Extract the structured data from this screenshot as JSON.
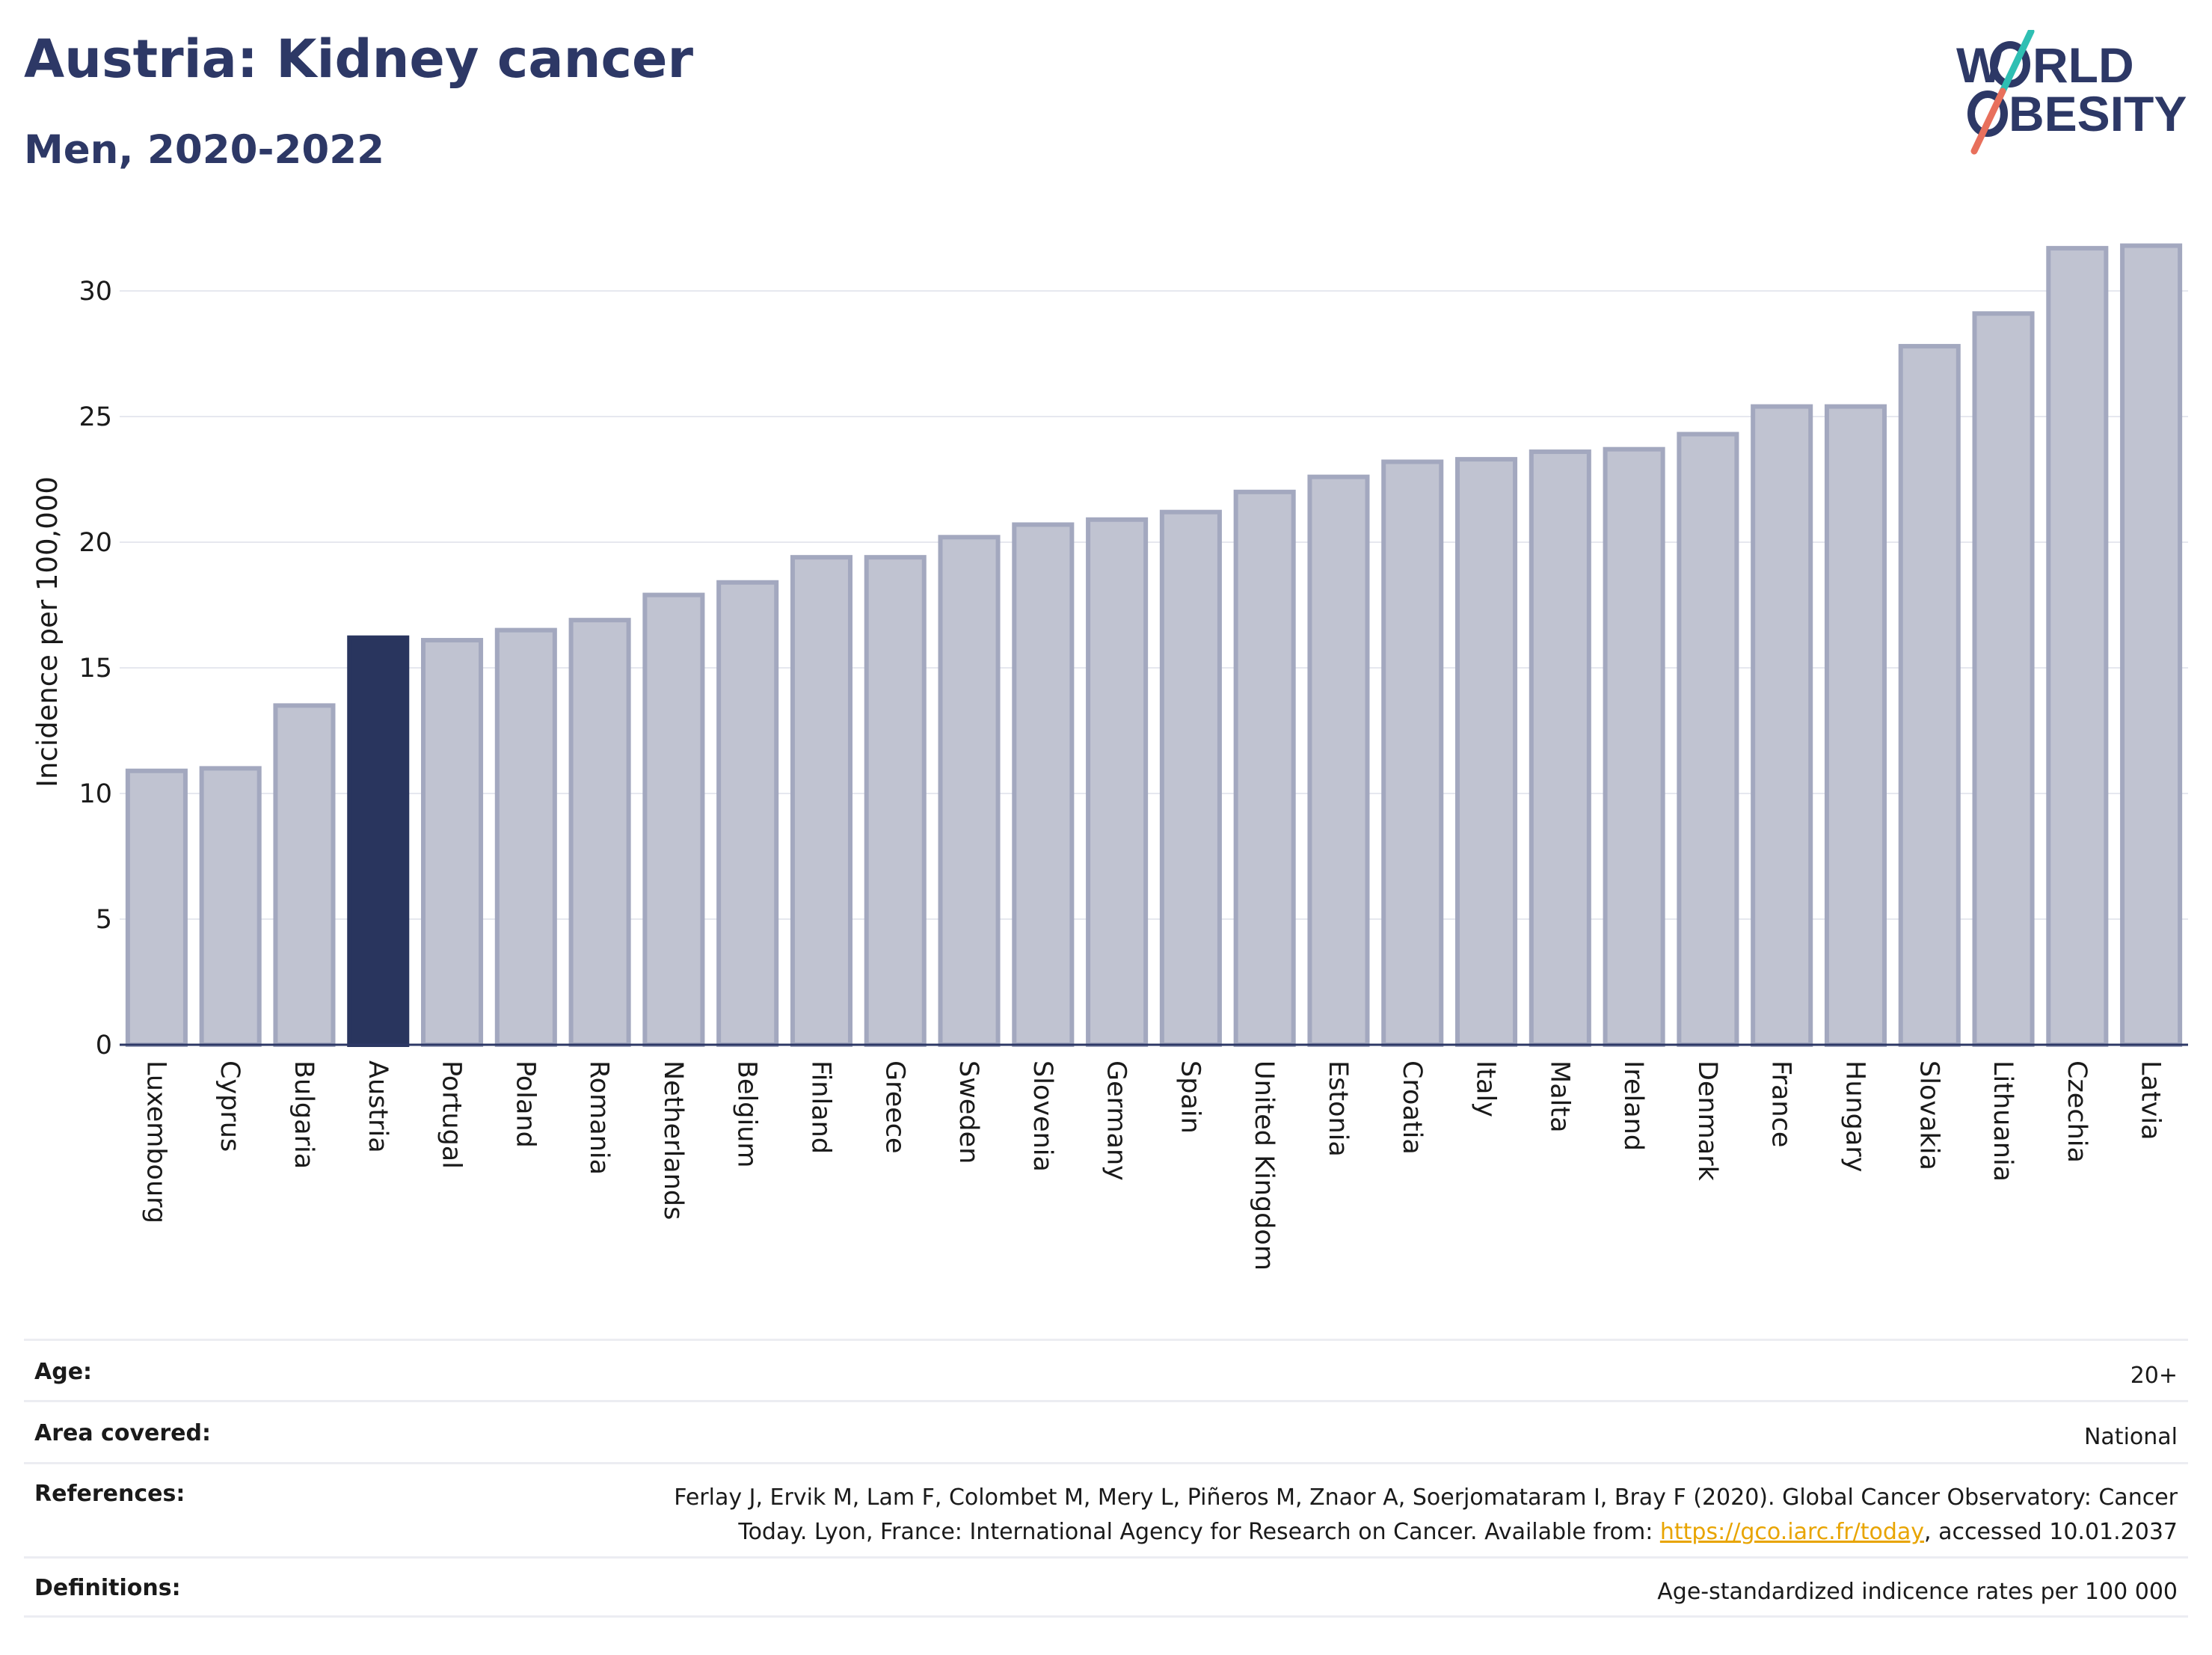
{
  "header": {
    "title": "Austria: Kidney cancer",
    "subtitle": "Men, 2020-2022"
  },
  "logo": {
    "line1_a": "W",
    "line1_b": "RLD",
    "line2": "BESITY",
    "slash_colors": [
      "#2fbfb3",
      "#e8705c"
    ]
  },
  "colors": {
    "bar": "#c0c3d1",
    "bar_border": "#a3a8bf",
    "highlight": "#29355e",
    "axis": "#2d3866",
    "grid": "#e6e8ef"
  },
  "chart_data": {
    "type": "bar",
    "ylabel": "Incidence per 100,000",
    "xlabel": "",
    "ylim": [
      0,
      33
    ],
    "yticks": [
      0,
      5,
      10,
      15,
      20,
      25,
      30
    ],
    "grid": true,
    "highlight": "Austria",
    "categories": [
      "Luxembourg",
      "Cyprus",
      "Bulgaria",
      "Austria",
      "Portugal",
      "Poland",
      "Romania",
      "Netherlands",
      "Belgium",
      "Finland",
      "Greece",
      "Sweden",
      "Slovenia",
      "Germany",
      "Spain",
      "United Kingdom",
      "Estonia",
      "Croatia",
      "Italy",
      "Malta",
      "Ireland",
      "Denmark",
      "France",
      "Hungary",
      "Slovakia",
      "Lithuania",
      "Czechia",
      "Latvia"
    ],
    "values": [
      10.9,
      11.0,
      13.5,
      16.2,
      16.1,
      16.5,
      16.9,
      17.9,
      18.4,
      19.4,
      19.4,
      20.2,
      20.7,
      20.9,
      21.2,
      22.0,
      22.6,
      23.2,
      23.3,
      23.6,
      23.7,
      24.3,
      25.4,
      25.4,
      27.8,
      29.1,
      31.7,
      31.8
    ]
  },
  "info": {
    "age_label": "Age:",
    "age_value": "20+",
    "area_label": "Area covered:",
    "area_value": "National",
    "refs_label": "References:",
    "refs_text_1": "Ferlay J, Ervik M, Lam F, Colombet M, Mery L, Piñeros M, Znaor A, Soerjomataram I, Bray F (2020). Global Cancer Observatory: Cancer",
    "refs_text_2": "Today. Lyon, France: International Agency for Research on Cancer. Available from: ",
    "refs_link": "https://gco.iarc.fr/today",
    "refs_text_3": ", accessed 10.01.2037",
    "defs_label": "Definitions:",
    "defs_value": "Age-standardized indicence rates per 100 000"
  }
}
